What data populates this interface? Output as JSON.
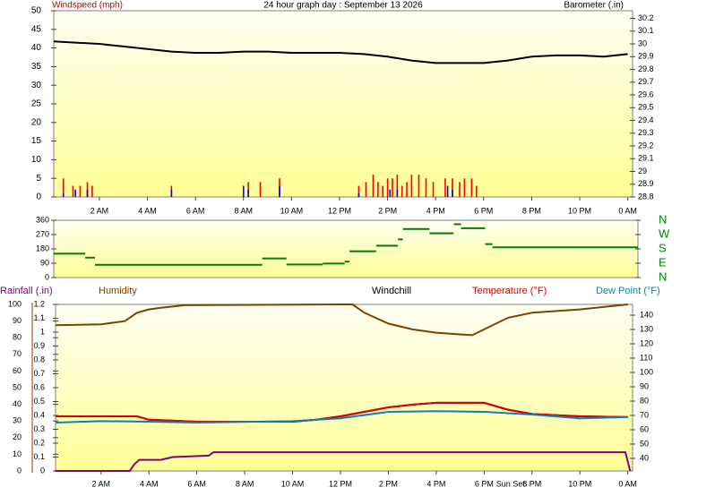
{
  "chart_data": [
    {
      "type": "line",
      "title": "24 hour graph day : September 13 2026",
      "y_label": "Windspeed (mph)",
      "y2_label": "Barometer (.in)",
      "xlim": [
        0.1,
        24.2
      ],
      "xticks": [
        {
          "value": 2,
          "label": "2 AM"
        },
        {
          "value": 4,
          "label": "4 AM"
        },
        {
          "value": 6,
          "label": "6 AM"
        },
        {
          "value": 8,
          "label": "8 AM"
        },
        {
          "value": 10,
          "label": "10 AM"
        },
        {
          "value": 12,
          "label": "12 PM"
        },
        {
          "value": 14,
          "label": "2 PM"
        },
        {
          "value": 16,
          "label": "4 PM"
        },
        {
          "value": 18,
          "label": "6 PM"
        },
        {
          "value": 20,
          "label": "8 PM"
        },
        {
          "value": 22,
          "label": "10 PM"
        },
        {
          "value": 24,
          "label": "0 AM"
        }
      ],
      "ylim": [
        0,
        50
      ],
      "yticks": [
        0,
        5,
        10,
        15,
        20,
        25,
        30,
        35,
        40,
        45,
        50
      ],
      "y2lim": [
        28.8,
        30.26
      ],
      "y2ticks": [
        28.8,
        28.9,
        29,
        29.1,
        29.2,
        29.3,
        29.4,
        29.5,
        29.6,
        29.7,
        29.8,
        29.9,
        30,
        30.1,
        30.2
      ],
      "series": [
        {
          "type": "bar",
          "color": "#ff0000",
          "x": [
            0.5,
            0.9,
            1.2,
            1.5,
            1.7,
            5,
            8,
            8.2,
            8.7,
            9.5,
            12.8,
            13.1,
            13.4,
            13.6,
            13.8,
            14,
            14.2,
            14.4,
            14.6,
            14.8,
            15,
            15.3,
            15.6,
            15.9,
            16.4,
            16.7,
            17,
            17.2,
            17.5,
            17.7
          ],
          "values": [
            5,
            3,
            3,
            4,
            3,
            3,
            3,
            4,
            4,
            5,
            3,
            4,
            6,
            4,
            3,
            5,
            5,
            6,
            3,
            4,
            6,
            6,
            5,
            4,
            5,
            5,
            4,
            5,
            5,
            3
          ]
        },
        {
          "type": "bar",
          "color": "#0000ff",
          "x": [
            0.5,
            1,
            1.5,
            5,
            8,
            8.2,
            9.5,
            12.8,
            14.1,
            14.4,
            16.5,
            16.7
          ],
          "values": [
            1,
            2,
            2,
            2,
            3,
            2,
            3,
            1,
            2,
            2,
            3,
            2
          ]
        },
        {
          "type": "line",
          "axis": "y2",
          "color": "#000000",
          "x": [
            0.1,
            1,
            2,
            3,
            4,
            5,
            6,
            7,
            8,
            9,
            10,
            11,
            12,
            13,
            14,
            15,
            16,
            17,
            18,
            19,
            20,
            21,
            22,
            23,
            24
          ],
          "values": [
            30.02,
            30.01,
            30.0,
            29.98,
            29.96,
            29.94,
            29.93,
            29.93,
            29.94,
            29.94,
            29.93,
            29.93,
            29.93,
            29.92,
            29.9,
            29.87,
            29.85,
            29.85,
            29.85,
            29.87,
            29.9,
            29.91,
            29.91,
            29.9,
            29.92
          ]
        }
      ]
    },
    {
      "type": "scatter",
      "xlim": [
        0.1,
        24.2
      ],
      "ylim": [
        0,
        360
      ],
      "yticks": [
        0,
        90,
        180,
        270,
        360
      ],
      "y2lim": [
        0,
        360
      ],
      "y2ticks": [
        {
          "value": 0,
          "label": "N"
        },
        {
          "value": 90,
          "label": "E"
        },
        {
          "value": 180,
          "label": "S"
        },
        {
          "value": 270,
          "label": "W"
        },
        {
          "value": 360,
          "label": "N"
        }
      ],
      "color": "#008000",
      "x": [
        0.1,
        1.4,
        1.8,
        8.7,
        9.7,
        11.2,
        12.1,
        12.3,
        13.4,
        14.3,
        14.5,
        15.6,
        16.6,
        16.9,
        17.9,
        18.2
      ],
      "values": [
        150,
        125,
        80,
        120,
        82,
        88,
        100,
        165,
        200,
        240,
        305,
        278,
        335,
        310,
        210,
        190
      ]
    },
    {
      "type": "line",
      "xlim": [
        0.1,
        24.2
      ],
      "xticks": [
        {
          "value": 2,
          "label": "2 AM"
        },
        {
          "value": 4,
          "label": "4 AM"
        },
        {
          "value": 6,
          "label": "6 AM"
        },
        {
          "value": 8,
          "label": "8 AM"
        },
        {
          "value": 10,
          "label": "10 AM"
        },
        {
          "value": 12,
          "label": "12 PM"
        },
        {
          "value": 14,
          "label": "2 PM"
        },
        {
          "value": 16,
          "label": "4 PM"
        },
        {
          "value": 18,
          "label": "6 PM"
        },
        {
          "value": 20,
          "label": "8 PM"
        },
        {
          "value": 22,
          "label": "10 PM"
        },
        {
          "value": 24,
          "label": "0 AM"
        }
      ],
      "ylim": [
        0,
        1.2
      ],
      "yticks": [
        0,
        0.1,
        0.2,
        0.3,
        0.4,
        0.5,
        0.6,
        0.7,
        0.8,
        0.9,
        1,
        1.1,
        1.2
      ],
      "y3lim": [
        0,
        100
      ],
      "y3ticks": [
        0,
        10,
        20,
        30,
        40,
        50,
        60,
        70,
        80,
        90,
        100
      ],
      "y2lim": [
        31.25,
        147.5
      ],
      "y2ticks": [
        40,
        50,
        60,
        70,
        80,
        90,
        100,
        110,
        120,
        130,
        140
      ],
      "annotations": [
        {
          "text": "Sun Set",
          "x": 19.1
        }
      ],
      "series": [
        {
          "name": "Rainfall (.in)",
          "type": "line",
          "axis": "y",
          "color": "#800080",
          "x": [
            0.1,
            3.2,
            3.4,
            3.6,
            4.5,
            5,
            6.5,
            6.7,
            23.9,
            24.1
          ],
          "values": [
            0,
            0,
            0.05,
            0.08,
            0.08,
            0.1,
            0.11,
            0.135,
            0.135,
            0
          ]
        },
        {
          "name": "Humidity",
          "type": "line",
          "axis": "y3",
          "color": "#804000",
          "x": [
            0.1,
            2,
            3,
            3.5,
            4,
            4.5,
            5.5,
            12.5,
            13,
            14,
            15,
            16,
            17,
            17.5,
            18,
            19,
            20,
            22,
            24
          ],
          "values": [
            87.5,
            88,
            90,
            95,
            97,
            98,
            99.5,
            100,
            95,
            88.5,
            85,
            83,
            82,
            81.5,
            85,
            92,
            95,
            97,
            100
          ]
        },
        {
          "name": "Windchill",
          "type": "line",
          "axis": "y2",
          "color": "#000000",
          "x": [
            0.1,
            3.5,
            4,
            6,
            10,
            11,
            12,
            13,
            14,
            15,
            16,
            18,
            19,
            20,
            22,
            24
          ],
          "values": [
            69.4,
            69.4,
            67,
            65.6,
            65.6,
            67,
            69.4,
            72.5,
            75.6,
            77.5,
            78.8,
            78.8,
            74,
            71,
            69.4,
            68.8
          ]
        },
        {
          "name": "Temperature (°F)",
          "type": "line",
          "axis": "y2",
          "color": "#e00000",
          "x": [
            0.1,
            3.5,
            4,
            6,
            10,
            11,
            12,
            13,
            14,
            15,
            16,
            18,
            19,
            20,
            22,
            24
          ],
          "values": [
            69.4,
            69.4,
            67,
            65.6,
            65.6,
            67,
            69.4,
            72.5,
            75.6,
            77.5,
            78.8,
            78.8,
            74,
            71,
            69.4,
            68.8
          ]
        },
        {
          "name": "Dew Point (°F)",
          "type": "line",
          "axis": "y2",
          "color": "#1080b0",
          "x": [
            0.1,
            2,
            4,
            6,
            10,
            12,
            14,
            16,
            18,
            20,
            22,
            24
          ],
          "values": [
            65,
            66,
            65.6,
            65,
            66,
            68,
            72.5,
            73,
            72.5,
            70.6,
            68,
            68.8
          ]
        }
      ]
    }
  ]
}
